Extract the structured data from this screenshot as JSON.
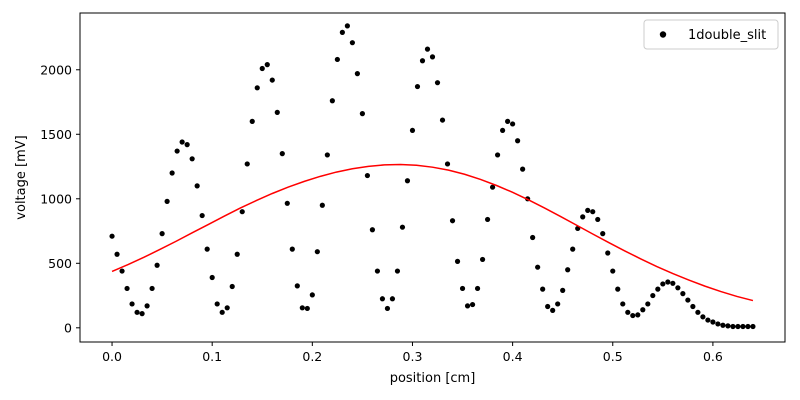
{
  "chart_data": {
    "type": "scatter",
    "xlabel": "position [cm]",
    "ylabel": "voltage [mV]",
    "xlim": [
      -0.032,
      0.672
    ],
    "ylim": [
      -110,
      2440
    ],
    "xticks": [
      0.0,
      0.1,
      0.2,
      0.3,
      0.4,
      0.5,
      0.6
    ],
    "xtick_labels": [
      "0.0",
      "0.1",
      "0.2",
      "0.3",
      "0.4",
      "0.5",
      "0.6"
    ],
    "yticks": [
      0,
      500,
      1000,
      1500,
      2000
    ],
    "ytick_labels": [
      "0",
      "500",
      "1000",
      "1500",
      "2000"
    ],
    "grid": false,
    "legend_position": "top-right",
    "series": [
      {
        "name": "1double_slit",
        "kind": "scatter",
        "color": "#000000",
        "x": [
          0.0,
          0.005,
          0.01,
          0.015,
          0.02,
          0.025,
          0.03,
          0.035,
          0.04,
          0.045,
          0.05,
          0.055,
          0.06,
          0.065,
          0.07,
          0.075,
          0.08,
          0.085,
          0.09,
          0.095,
          0.1,
          0.105,
          0.11,
          0.115,
          0.12,
          0.125,
          0.13,
          0.135,
          0.14,
          0.145,
          0.15,
          0.155,
          0.16,
          0.165,
          0.17,
          0.175,
          0.18,
          0.185,
          0.19,
          0.195,
          0.2,
          0.205,
          0.21,
          0.215,
          0.22,
          0.225,
          0.23,
          0.235,
          0.24,
          0.245,
          0.25,
          0.255,
          0.26,
          0.265,
          0.27,
          0.275,
          0.28,
          0.285,
          0.29,
          0.295,
          0.3,
          0.305,
          0.31,
          0.315,
          0.32,
          0.325,
          0.33,
          0.335,
          0.34,
          0.345,
          0.35,
          0.355,
          0.36,
          0.365,
          0.37,
          0.375,
          0.38,
          0.385,
          0.39,
          0.395,
          0.4,
          0.405,
          0.41,
          0.415,
          0.42,
          0.425,
          0.43,
          0.435,
          0.44,
          0.445,
          0.45,
          0.455,
          0.46,
          0.465,
          0.47,
          0.475,
          0.48,
          0.485,
          0.49,
          0.495,
          0.5,
          0.505,
          0.51,
          0.515,
          0.52,
          0.525,
          0.53,
          0.535,
          0.54,
          0.545,
          0.55,
          0.555,
          0.56,
          0.565,
          0.57,
          0.575,
          0.58,
          0.585,
          0.59,
          0.595,
          0.6,
          0.605,
          0.61,
          0.615,
          0.62,
          0.625,
          0.63,
          0.635,
          0.64
        ],
        "y": [
          710,
          570,
          440,
          305,
          185,
          120,
          110,
          170,
          305,
          485,
          730,
          980,
          1200,
          1370,
          1440,
          1420,
          1310,
          1100,
          870,
          610,
          390,
          185,
          120,
          155,
          320,
          570,
          900,
          1270,
          1600,
          1860,
          2010,
          2040,
          1920,
          1670,
          1350,
          965,
          610,
          325,
          155,
          150,
          255,
          590,
          950,
          1340,
          1760,
          2080,
          2290,
          2340,
          2210,
          1970,
          1660,
          1180,
          760,
          440,
          225,
          150,
          225,
          440,
          780,
          1140,
          1530,
          1870,
          2070,
          2160,
          2100,
          1900,
          1610,
          1270,
          830,
          515,
          305,
          170,
          180,
          305,
          530,
          840,
          1090,
          1340,
          1530,
          1600,
          1580,
          1450,
          1230,
          1000,
          700,
          470,
          300,
          165,
          135,
          185,
          290,
          450,
          610,
          770,
          860,
          910,
          900,
          840,
          730,
          580,
          440,
          300,
          185,
          120,
          95,
          100,
          140,
          185,
          250,
          300,
          340,
          355,
          345,
          310,
          265,
          215,
          165,
          120,
          85,
          60,
          45,
          30,
          20,
          15,
          10,
          10,
          10,
          10,
          10
        ]
      },
      {
        "name": "",
        "kind": "line",
        "color": "#ff0000",
        "x": [
          0.0,
          0.016,
          0.032,
          0.048,
          0.064,
          0.08,
          0.096,
          0.112,
          0.128,
          0.144,
          0.16,
          0.176,
          0.192,
          0.208,
          0.224,
          0.24,
          0.256,
          0.272,
          0.288,
          0.304,
          0.32,
          0.336,
          0.352,
          0.368,
          0.384,
          0.4,
          0.416,
          0.432,
          0.448,
          0.464,
          0.48,
          0.496,
          0.512,
          0.528,
          0.544,
          0.56,
          0.576,
          0.592,
          0.608,
          0.624,
          0.64
        ],
        "y": [
          437,
          490,
          547,
          608,
          671,
          736,
          800,
          865,
          928,
          986,
          1041,
          1091,
          1135,
          1174,
          1207,
          1233,
          1251,
          1263,
          1266,
          1260,
          1245,
          1222,
          1190,
          1150,
          1103,
          1050,
          991,
          928,
          862,
          795,
          727,
          661,
          596,
          534,
          475,
          420,
          370,
          323,
          281,
          243,
          211
        ]
      }
    ]
  }
}
